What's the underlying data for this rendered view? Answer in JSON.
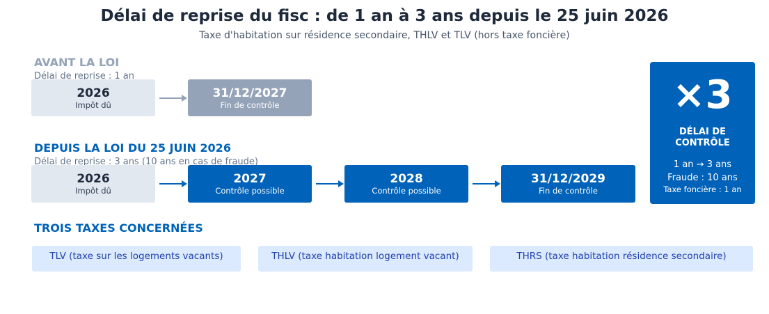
{
  "header": {
    "title": "Délai de reprise du fisc : de 1 an à 3 ans depuis le 25 juin 2026",
    "subtitle": "Taxe d'habitation sur résidence secondaire, THLV et TLV (hors taxe foncière)"
  },
  "before": {
    "heading": "AVANT LA LOI",
    "subheading": "Délai de reprise : 1 an",
    "boxes": [
      {
        "value": "2026",
        "caption": "Impôt dû"
      },
      {
        "value": "31/12/2027",
        "caption": "Fin de contrôle"
      }
    ]
  },
  "after": {
    "heading": "DEPUIS LA LOI DU 25 JUIN 2026",
    "subheading": "Délai de reprise : 3 ans (10 ans en cas de fraude)",
    "boxes": [
      {
        "value": "2026",
        "caption": "Impôt dû"
      },
      {
        "value": "2027",
        "caption": "Contrôle possible"
      },
      {
        "value": "2028",
        "caption": "Contrôle possible"
      },
      {
        "value": "31/12/2029",
        "caption": "Fin de contrôle"
      }
    ]
  },
  "highlight": {
    "multiplier": "×3",
    "label_line1": "DÉLAI DE",
    "label_line2": "CONTRÔLE",
    "line1": "1 an → 3 ans",
    "line2": "Fraude : 10 ans",
    "line3": "Taxe foncière : 1 an"
  },
  "taxes": {
    "heading": "TROIS TAXES CONCERNÉES",
    "items": [
      "TLV (taxe sur les logements vacants)",
      "THLV (taxe habitation logement vacant)",
      "THRS (taxe habitation résidence secondaire)"
    ]
  },
  "colors": {
    "accent": "#0062b8",
    "muted": "#94a3b8",
    "light": "#e2e8f0",
    "pill": "#dbeafe"
  }
}
